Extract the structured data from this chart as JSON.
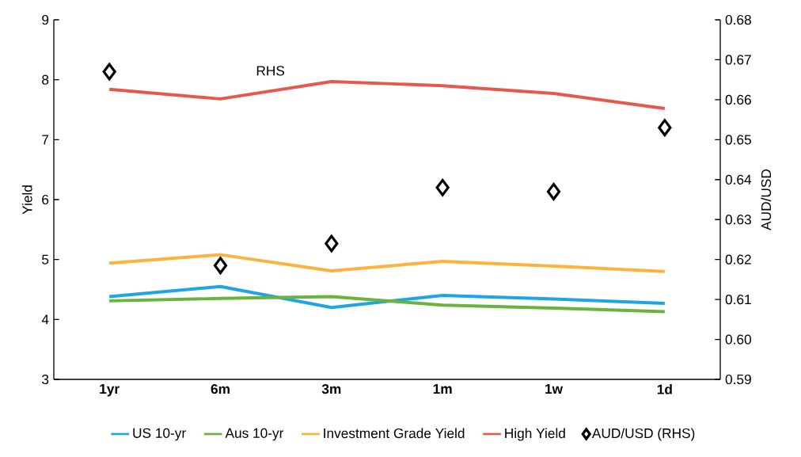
{
  "chart_data": {
    "type": "line",
    "ylabel": "Yield",
    "y2label": "AUD/USD",
    "categories": [
      "1yr",
      "6m",
      "3m",
      "1m",
      "1w",
      "1d"
    ],
    "series": [
      {
        "name": "US 10-yr",
        "color": "#1ea5e6",
        "values": [
          4.38,
          4.55,
          4.2,
          4.4,
          4.34,
          4.27
        ]
      },
      {
        "name": "Aus 10-yr",
        "color": "#6ab33e",
        "values": [
          4.31,
          4.35,
          4.38,
          4.24,
          4.19,
          4.13
        ]
      },
      {
        "name": "Investment Grade Yield",
        "color": "#fdb23c",
        "values": [
          4.94,
          5.08,
          4.81,
          4.97,
          4.89,
          4.8
        ]
      },
      {
        "name": "High Yield",
        "color": "#e8574b",
        "values": [
          7.84,
          7.68,
          7.97,
          7.9,
          7.77,
          7.52
        ]
      },
      {
        "name": "AUD/USD (RHS)",
        "type": "scatter",
        "axis": "y2",
        "marker": "diamond",
        "color": "#000000",
        "values": [
          0.667,
          0.6185,
          0.624,
          0.638,
          0.637,
          0.653
        ]
      }
    ],
    "ylim": [
      3,
      9
    ],
    "yticks": [
      3,
      4,
      5,
      6,
      7,
      8,
      9
    ],
    "y2lim": [
      0.59,
      0.68
    ],
    "y2ticks": [
      0.59,
      {
        "value": 0.6,
        "label": "0.60"
      },
      0.61,
      0.62,
      0.63,
      0.64,
      0.65,
      0.66,
      0.67,
      0.68
    ],
    "annotations": [
      "RHS"
    ],
    "legend": "bottom",
    "grid": false
  }
}
